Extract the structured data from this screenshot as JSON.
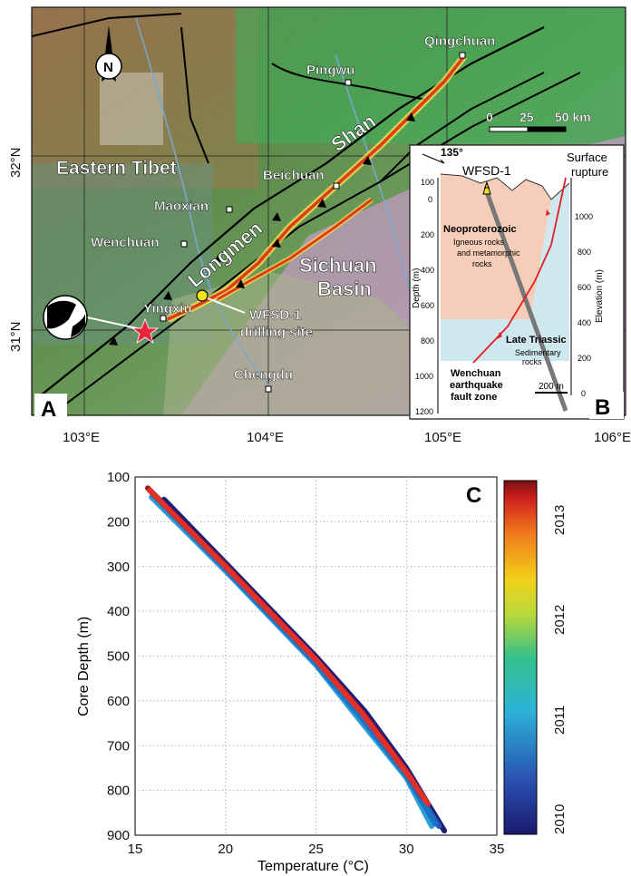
{
  "panelA": {
    "panel_letter": "A",
    "lat_ticks": [
      "32°N",
      "31°N"
    ],
    "lon_ticks": [
      "103°E",
      "104°E",
      "105°E",
      "106°E"
    ],
    "places": {
      "qingchuan": "Qingchuan",
      "pingwu": "Pingwu",
      "beichuan": "Beichuan",
      "maoxian": "Maoxian",
      "wenchuan": "Wenchuan",
      "yingxiu": "Yingxiu",
      "chengdu": "Chengdu"
    },
    "regions": {
      "eastern_tibet": "Eastern Tibet",
      "sichuan": "Sichuan",
      "basin": "Basin",
      "longmen": "Longmen",
      "shan": "Shan"
    },
    "drilling_label_1": "WFSD-1",
    "drilling_label_2": "drilling site",
    "scale": {
      "zero": "0",
      "mid": "25",
      "end": "50 km"
    },
    "north_letter": "N"
  },
  "panelB": {
    "panel_letter": "B",
    "azimuth": "135°",
    "well_name": "WFSD-1",
    "surface_rupture_1": "Surface",
    "surface_rupture_2": "rupture",
    "depth_label": "Depth (m)",
    "elevation_label": "Elevation (m)",
    "depth_ticks": [
      "100",
      "0",
      "200",
      "400",
      "600",
      "800",
      "1000",
      "1200"
    ],
    "elevation_ticks": [
      "1000",
      "800",
      "600",
      "400",
      "200",
      "0"
    ],
    "unit1_title": "Neoproterozoic",
    "unit1_desc_1": "Igneous rocks",
    "unit1_desc_2": "and metamorphic",
    "unit1_desc_3": "rocks",
    "unit2_title": "Late Triassic",
    "unit2_desc_1": "Sedimentary",
    "unit2_desc_2": "rocks",
    "fault_1": "Wenchuan",
    "fault_2": "earthquake",
    "fault_3": "fault zone",
    "scale": "200 m"
  },
  "panelC": {
    "panel_letter": "C",
    "colorbar_ticks": [
      "2013",
      "2012",
      "2011",
      "2010"
    ]
  },
  "chart_data": {
    "type": "line",
    "xlabel": "Temperature (°C)",
    "ylabel": "Core Depth (m)",
    "xlim": [
      15,
      35
    ],
    "ylim": [
      900,
      100
    ],
    "y_inverted": true,
    "grid": true,
    "xticks": [
      15,
      20,
      25,
      30,
      35
    ],
    "yticks": [
      100,
      200,
      300,
      400,
      500,
      600,
      700,
      800,
      900
    ],
    "colorbar": {
      "label_ticks": [
        "2010",
        "2011",
        "2012",
        "2013"
      ]
    },
    "series": [
      {
        "time": 2010.0,
        "color": "#1b1f7a",
        "points": [
          [
            16.6,
            150
          ],
          [
            20,
            292
          ],
          [
            25,
            501
          ],
          [
            27.7,
            623
          ],
          [
            30,
            750
          ],
          [
            32.1,
            890
          ]
        ]
      },
      {
        "time": 2010.5,
        "color": "#2857b8",
        "points": [
          [
            16.2,
            145
          ],
          [
            20,
            302
          ],
          [
            25,
            512
          ],
          [
            27.5,
            633
          ],
          [
            30,
            762
          ],
          [
            31.8,
            880
          ]
        ]
      },
      {
        "time": 2011.0,
        "color": "#2d9fd6",
        "points": [
          [
            15.9,
            145
          ],
          [
            20,
            310
          ],
          [
            25,
            520
          ],
          [
            27.4,
            642
          ],
          [
            30,
            772
          ],
          [
            31.4,
            880
          ]
        ]
      },
      {
        "time": 2011.5,
        "color": "#1a74c6",
        "points": [
          [
            16.0,
            140
          ],
          [
            20,
            306
          ],
          [
            25,
            516
          ],
          [
            27.5,
            638
          ],
          [
            30,
            767
          ],
          [
            31.6,
            875
          ]
        ]
      },
      {
        "time": 2013.5,
        "color": "#9b1616",
        "points": [
          [
            15.7,
            125
          ],
          [
            20,
            298
          ],
          [
            25,
            507
          ],
          [
            27.6,
            628
          ],
          [
            30,
            757
          ],
          [
            30.9,
            815
          ]
        ]
      },
      {
        "time": 2013.2,
        "color": "#e03029",
        "points": [
          [
            15.8,
            130
          ],
          [
            20,
            300
          ],
          [
            25,
            508
          ],
          [
            27.6,
            630
          ],
          [
            30,
            760
          ],
          [
            31.2,
            830
          ]
        ]
      }
    ]
  }
}
